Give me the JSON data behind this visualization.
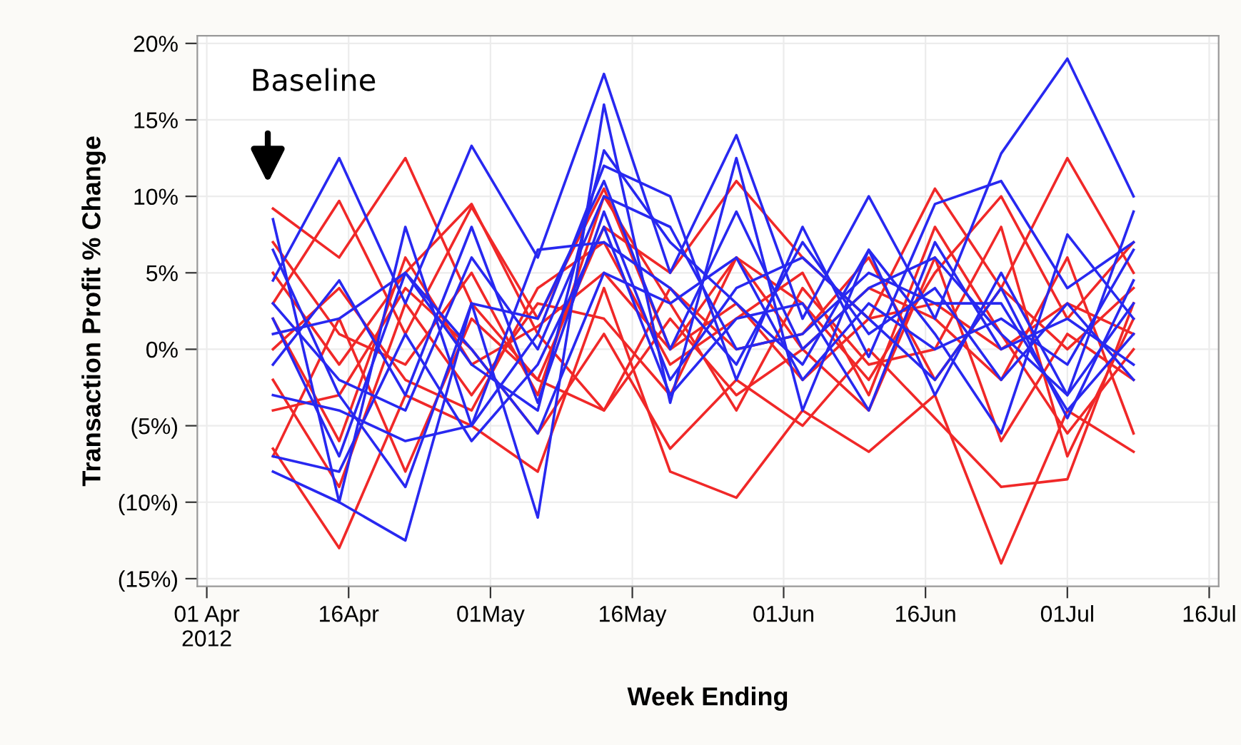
{
  "chart_data": {
    "type": "line",
    "xlabel": "Week Ending",
    "ylabel": "Transaction Profit % Change",
    "x": [
      "2012-04-08",
      "2012-04-15",
      "2012-04-22",
      "2012-04-29",
      "2012-05-06",
      "2012-05-13",
      "2012-05-20",
      "2012-05-27",
      "2012-06-03",
      "2012-06-10",
      "2012-06-17",
      "2012-06-24",
      "2012-07-01",
      "2012-07-08"
    ],
    "series": [
      {
        "color": "#f02828",
        "values": [
          9.2,
          6,
          12.5,
          3,
          -2,
          8,
          5,
          11,
          6,
          2,
          10.5,
          4,
          12.5,
          5
        ]
      },
      {
        "color": "#f02828",
        "values": [
          -6.5,
          -13,
          -3,
          -5,
          -8,
          4,
          -8,
          -9.7,
          -4,
          -6.7,
          -3,
          -14,
          -4,
          -6.7
        ]
      },
      {
        "color": "#f02828",
        "values": [
          3,
          9.7,
          1,
          9.3,
          2,
          10.5,
          0,
          6,
          3,
          -2,
          5,
          10,
          2,
          7
        ]
      },
      {
        "color": "#f02828",
        "values": [
          -4,
          -3,
          4,
          0,
          -5.5,
          1,
          -6.5,
          -2,
          -5,
          0,
          -4.5,
          -9,
          -8.5,
          3
        ]
      },
      {
        "color": "#f02828",
        "values": [
          5,
          -1,
          5,
          9.5,
          1,
          -4,
          2,
          -3,
          0,
          4,
          2,
          -2,
          6,
          -5.5
        ]
      },
      {
        "color": "#f02828",
        "values": [
          0,
          4,
          -2,
          -4,
          4,
          7,
          -1,
          2,
          5,
          -3,
          8,
          1,
          -5.5,
          0
        ]
      },
      {
        "color": "#f02828",
        "values": [
          -7,
          2,
          -8,
          2,
          -2,
          -4,
          4,
          0,
          1,
          6,
          -2,
          4,
          0,
          4
        ]
      },
      {
        "color": "#f02828",
        "values": [
          2,
          -6,
          6,
          -1,
          1.5,
          5,
          0,
          3,
          -2,
          2,
          3,
          0,
          3,
          1
        ]
      },
      {
        "color": "#f02828",
        "values": [
          7,
          1,
          -1,
          5,
          -3,
          10,
          3,
          -4,
          4,
          -1,
          0,
          8,
          -7,
          2
        ]
      },
      {
        "color": "#f02828",
        "values": [
          -2,
          -9,
          3,
          -3,
          3,
          2,
          -3,
          6,
          0,
          -4,
          6,
          -6,
          1,
          -2
        ]
      },
      {
        "color": "#2828f0",
        "values": [
          4.5,
          12.5,
          3,
          13.3,
          6,
          18,
          5,
          14,
          2,
          10,
          2,
          12.8,
          19,
          10
        ]
      },
      {
        "color": "#2828f0",
        "values": [
          -8,
          -10,
          -12.5,
          3,
          -11,
          16,
          -3.5,
          12.5,
          -4,
          6.5,
          -3,
          5,
          -3,
          9
        ]
      },
      {
        "color": "#2828f0",
        "values": [
          8.5,
          -10,
          8,
          -5,
          1,
          12,
          10,
          -2,
          8,
          -0.5,
          9.5,
          11,
          4,
          7
        ]
      },
      {
        "color": "#2828f0",
        "values": [
          2,
          -7,
          5,
          -1,
          -4,
          13,
          7,
          3,
          -1,
          6.5,
          1,
          -5.5,
          7.5,
          2
        ]
      },
      {
        "color": "#2828f0",
        "values": [
          -1,
          4.5,
          -3,
          8,
          -3.5,
          9,
          -2,
          4,
          6,
          2,
          -2,
          4,
          -4.5,
          4.5
        ]
      },
      {
        "color": "#2828f0",
        "values": [
          6.5,
          -3,
          -9,
          3,
          2,
          11,
          0,
          9,
          0,
          4,
          6,
          1,
          -3,
          3
        ]
      },
      {
        "color": "#2828f0",
        "values": [
          -3,
          -4,
          -6,
          -5,
          6.5,
          7,
          4,
          -1,
          7,
          1,
          4,
          -2,
          3,
          -2
        ]
      },
      {
        "color": "#2828f0",
        "values": [
          1,
          2,
          5,
          0,
          -5.5,
          5,
          3,
          6,
          -2,
          3,
          0,
          2,
          -1,
          6.5
        ]
      },
      {
        "color": "#2828f0",
        "values": [
          -7,
          -8,
          1,
          -6,
          -1,
          8,
          -3,
          2,
          3,
          -4,
          7,
          0,
          2,
          -1
        ]
      },
      {
        "color": "#2828f0",
        "values": [
          3,
          -2,
          -4,
          6,
          0,
          10,
          8,
          0,
          1,
          5,
          3,
          3,
          -4,
          1
        ]
      }
    ],
    "annotations": [
      "Baseline"
    ],
    "xlim": [
      "2012-03-31",
      "2012-07-17"
    ],
    "xticks": [
      {
        "value": "2012-04-01",
        "label": "01 Apr\n2012"
      },
      {
        "value": "2012-04-16",
        "label": "16Apr"
      },
      {
        "value": "2012-05-01",
        "label": "01May"
      },
      {
        "value": "2012-05-16",
        "label": "16May"
      },
      {
        "value": "2012-06-01",
        "label": "01Jun"
      },
      {
        "value": "2012-06-16",
        "label": "16Jun"
      },
      {
        "value": "2012-07-01",
        "label": "01Jul"
      },
      {
        "value": "2012-07-16",
        "label": "16Jul"
      }
    ],
    "ylim": [
      -15.5,
      20.5
    ],
    "yticks": [
      {
        "value": 20,
        "label": "20%"
      },
      {
        "value": 15,
        "label": "15%"
      },
      {
        "value": 10,
        "label": "10%"
      },
      {
        "value": 5,
        "label": "5%"
      },
      {
        "value": 0,
        "label": "0%"
      },
      {
        "value": -5,
        "label": "(5%)"
      },
      {
        "value": -10,
        "label": "(10%)"
      },
      {
        "value": -15,
        "label": "(15%)"
      }
    ],
    "grid": true,
    "legend": false,
    "marker": "none",
    "line_style": "solid"
  }
}
